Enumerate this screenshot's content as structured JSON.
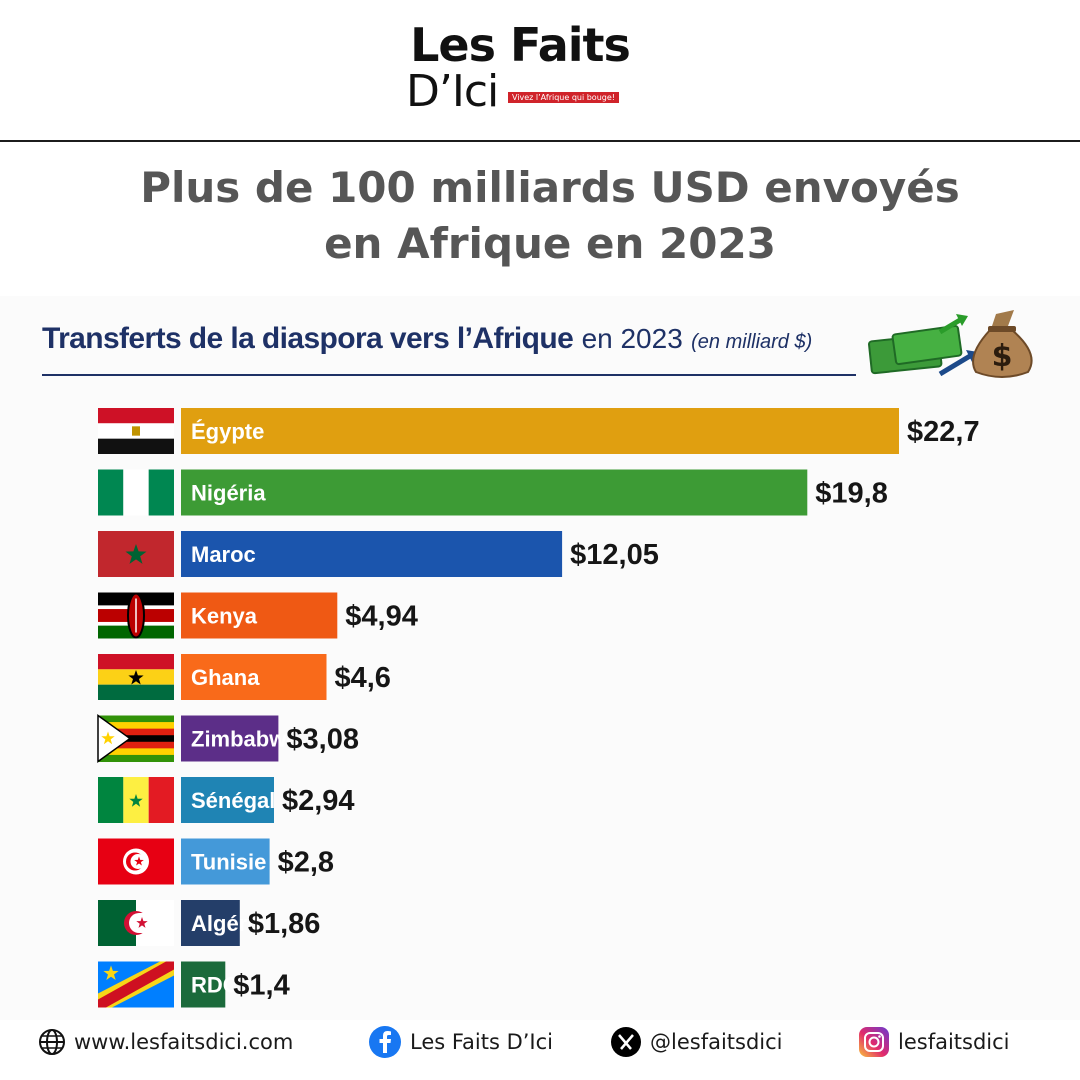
{
  "brand": {
    "logo_line1": "Les Faits",
    "logo_line2": "D’Ici",
    "tagline": "Vivez l’Afrique qui bouge!"
  },
  "headline": [
    "Plus de 100 milliards USD envoyés",
    "en Afrique en 2023"
  ],
  "chart_title": {
    "bold": "Transferts de la diaspora vers l’Afrique",
    "regular": "en 2023",
    "unit": "(en milliard $)"
  },
  "icons": {
    "title_decoration": "money-bag-icon",
    "website": "globe-icon",
    "facebook": "facebook-icon",
    "x": "x-icon",
    "instagram": "instagram-icon"
  },
  "chart_data": {
    "type": "bar",
    "orientation": "horizontal",
    "title": "Transferts de la diaspora vers l’Afrique en 2023 (en milliard $)",
    "categories": [
      "Égypte",
      "Nigéria",
      "Maroc",
      "Kenya",
      "Ghana",
      "Zimbabwe",
      "Sénégal",
      "Tunisie",
      "Algérie",
      "RDC"
    ],
    "values": [
      22.7,
      19.8,
      12.05,
      4.94,
      4.6,
      3.08,
      2.94,
      2.8,
      1.86,
      1.4
    ],
    "value_labels": [
      "$22,7",
      "$19,8",
      "$12,05",
      "$4,94",
      "$4,6",
      "$3,08",
      "$2,94",
      "$2,8",
      "$1,86",
      "$1,4"
    ],
    "colors": [
      "#e09f10",
      "#3d9b35",
      "#1b55ad",
      "#ef5914",
      "#f96a1a",
      "#5c2e88",
      "#1f84b4",
      "#4499d9",
      "#243e69",
      "#1b6a3b"
    ],
    "flags": [
      "egypt-flag-icon",
      "nigeria-flag-icon",
      "morocco-flag-icon",
      "kenya-flag-icon",
      "ghana-flag-icon",
      "zimbabwe-flag-icon",
      "senegal-flag-icon",
      "tunisia-flag-icon",
      "algeria-flag-icon",
      "drc-flag-icon"
    ],
    "xlabel": "",
    "ylabel": "",
    "grid": false,
    "legend": "none"
  },
  "footer": {
    "website": "www.lesfaitsdici.com",
    "facebook": "Les Faits D’Ici",
    "x": "@lesfaitsdici",
    "instagram": "lesfaitsdici"
  }
}
